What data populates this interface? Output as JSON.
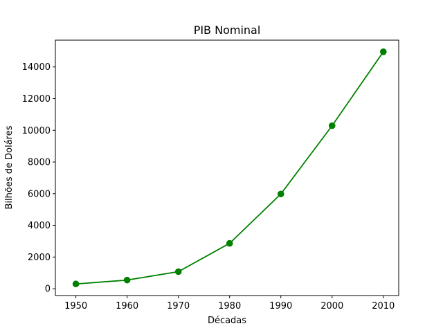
{
  "chart_data": {
    "type": "line",
    "title": "PIB Nominal",
    "xlabel": "Décadas",
    "ylabel": "Bilhões de Doláres",
    "x": [
      1950,
      1960,
      1970,
      1980,
      1990,
      2000,
      2010
    ],
    "series": [
      {
        "values": [
          300,
          543,
          1075,
          2862,
          5979,
          10290,
          14958
        ],
        "color": "#008000",
        "marker": "circle"
      }
    ],
    "xlim": [
      1946,
      2013
    ],
    "ylim": [
      -433,
      15693
    ],
    "xticks": [
      1950,
      1960,
      1970,
      1980,
      1990,
      2000,
      2010
    ],
    "yticks": [
      0,
      2000,
      4000,
      6000,
      8000,
      10000,
      12000,
      14000
    ],
    "grid": false,
    "legend": false
  }
}
